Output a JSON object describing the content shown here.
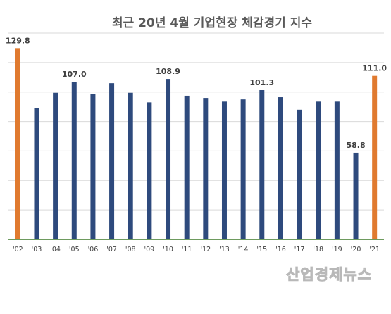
{
  "watermark": "산업경제뉴스",
  "chart_data": {
    "type": "bar",
    "title": "최근 20년 4월 기업현장 체감경기 지수",
    "xlabel": "",
    "ylabel": "",
    "ylim": [
      0,
      140
    ],
    "grid": true,
    "categories": [
      "'02",
      "'03",
      "'04",
      "'05",
      "'06",
      "'07",
      "'08",
      "'09",
      "'10",
      "'11",
      "'12",
      "'13",
      "'14",
      "'15",
      "'16",
      "'17",
      "'18",
      "'19",
      "'20",
      "'21"
    ],
    "values": [
      129.8,
      89,
      99.5,
      107.0,
      98.5,
      106,
      99.5,
      93,
      108.9,
      97.5,
      96,
      93.5,
      95,
      101.3,
      96.5,
      88,
      93.5,
      93.5,
      58.8,
      111.0
    ],
    "data_labels": [
      "129.8",
      "",
      "",
      "107.0",
      "",
      "",
      "",
      "",
      "108.9",
      "",
      "",
      "",
      "",
      "101.3",
      "",
      "",
      "",
      "",
      "58.8",
      "111.0"
    ],
    "colors": {
      "default": "#2e4a7d",
      "highlight": "#e07a2f",
      "grid": "#d9d9d9",
      "axis": "#3f7a2a"
    },
    "highlight_categories": [
      "'02",
      "'21"
    ]
  }
}
